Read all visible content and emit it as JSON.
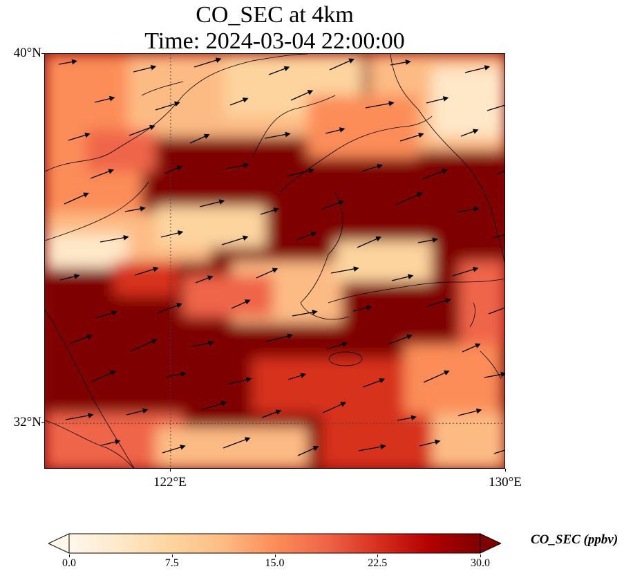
{
  "title": {
    "line1": "CO_SEC at 4km",
    "line2": "Time: 2024-03-04 22:00:00"
  },
  "map": {
    "extent": {
      "lon_min": 119,
      "lon_max": 130,
      "lat_min": 31,
      "lat_max": 40
    },
    "lat_ticks": [
      {
        "label": "40°N",
        "value": 40
      },
      {
        "label": "32°N",
        "value": 32
      }
    ],
    "lon_ticks": [
      {
        "label": "122°E",
        "value": 122
      },
      {
        "label": "130°E",
        "value": 130
      }
    ],
    "gridlines": "dotted",
    "overlays": [
      "coastlines",
      "wind-vectors"
    ]
  },
  "colorbar": {
    "label": "CO_SEC (ppbv)",
    "min": 0.0,
    "max": 30.0,
    "extend": "both",
    "colormap": "OrRd",
    "ticks": [
      "0.0",
      "7.5",
      "15.0",
      "22.5",
      "30.0"
    ],
    "colors": [
      "#fff7ec",
      "#fee8c8",
      "#fdd49e",
      "#fdbb84",
      "#fc8d59",
      "#ef6548",
      "#d7301f",
      "#b30000",
      "#7f0000"
    ]
  }
}
